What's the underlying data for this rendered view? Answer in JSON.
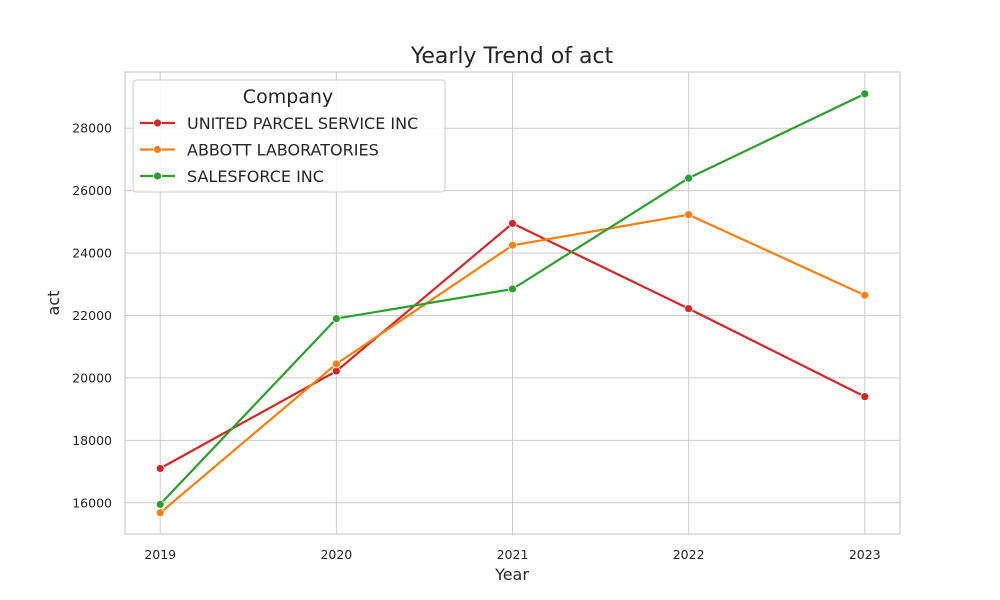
{
  "chart_data": {
    "type": "line",
    "title": "Yearly Trend of act",
    "xlabel": "Year",
    "ylabel": "act",
    "x": [
      2019,
      2020,
      2021,
      2022,
      2023
    ],
    "x_tick_labels": [
      "2019",
      "2020",
      "2021",
      "2022",
      "2023"
    ],
    "y_ticks": [
      16000,
      18000,
      20000,
      22000,
      24000,
      26000,
      28000
    ],
    "y_tick_labels": [
      "16000",
      "18000",
      "20000",
      "22000",
      "24000",
      "26000",
      "28000"
    ],
    "xlim": [
      2018.8,
      2023.2
    ],
    "ylim": [
      15000,
      29800
    ],
    "grid": true,
    "legend": {
      "title": "Company",
      "placement": "top-left"
    },
    "series": [
      {
        "name": "UNITED PARCEL SERVICE INC",
        "color": "#d62728",
        "values": [
          17100,
          20220,
          24950,
          22220,
          19400
        ]
      },
      {
        "name": "ABBOTT LABORATORIES",
        "color": "#ff7f0e",
        "values": [
          15680,
          20450,
          24250,
          25230,
          22650
        ]
      },
      {
        "name": "SALESFORCE INC",
        "color": "#2ca02c",
        "values": [
          15950,
          21900,
          22850,
          26400,
          29100
        ]
      }
    ]
  }
}
